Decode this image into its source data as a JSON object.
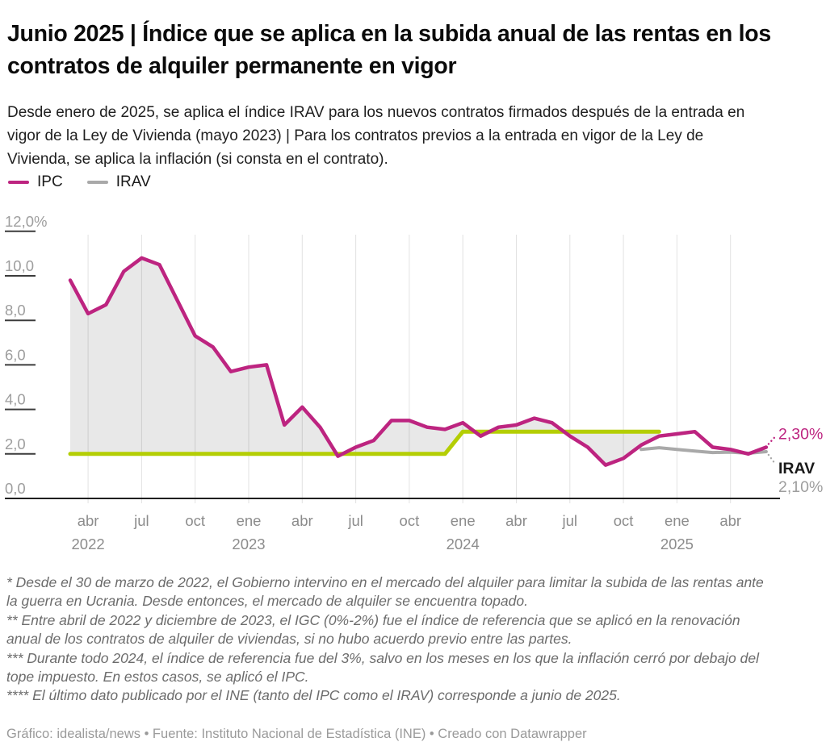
{
  "header": {
    "title": "Junio 2025 | Índice que se aplica en la subida anual de las rentas en los contratos de alquiler permanente en vigor",
    "description": "Desde enero de 2025, se aplica el índice IRAV para los nuevos contratos firmados después de la entrada en vigor de la Ley de Vivienda (mayo 2023) | Para los contratos previos a la entrada en vigor de la Ley de Vivienda, se aplica la inflación (si consta en el contrato)."
  },
  "legend": {
    "items": [
      {
        "label": "IPC",
        "color": "#bd2480"
      },
      {
        "label": "IRAV",
        "color": "#a9a9a9"
      }
    ]
  },
  "chart_data": {
    "type": "line",
    "x_unit": "month",
    "x_start": "2022-03",
    "x_end": "2025-06",
    "ylim": [
      0,
      12
    ],
    "grid": "vertical",
    "legend_position": "top-left",
    "style": {
      "grid_color": "#e2e2e2",
      "axis_color": "#1f1f1f",
      "tick_color": "#3c3c3c",
      "y_label_color": "#9e9e9e",
      "x_label_color": "#8c8c8c",
      "annotation_dark": "#1a1a1a"
    },
    "area": {
      "between": [
        "IPC",
        "Tope aplicado (IGC/3%)"
      ],
      "fill": "rgba(0,0,0,0.09)"
    },
    "series": [
      {
        "name": "IPC",
        "color": "#bd2480",
        "start": "2022-03",
        "values": [
          9.8,
          8.3,
          8.7,
          10.2,
          10.8,
          10.5,
          8.9,
          7.3,
          6.8,
          5.7,
          5.9,
          6.0,
          3.3,
          4.1,
          3.2,
          1.9,
          2.3,
          2.6,
          3.5,
          3.5,
          3.2,
          3.1,
          3.4,
          2.8,
          3.2,
          3.3,
          3.6,
          3.4,
          2.8,
          2.3,
          1.5,
          1.8,
          2.4,
          2.8,
          2.9,
          3.0,
          2.3,
          2.2,
          2.0,
          2.3
        ]
      },
      {
        "name": "IRAV",
        "color": "#a9a9a9",
        "start": "2024-11",
        "values": [
          2.2,
          2.28,
          2.2,
          2.13,
          2.06,
          2.08,
          2.03,
          2.1
        ]
      },
      {
        "name": "Tope aplicado (IGC/3%)",
        "color": "#b4ce04",
        "start": "2022-03",
        "values": [
          2,
          2,
          2,
          2,
          2,
          2,
          2,
          2,
          2,
          2,
          2,
          2,
          2,
          2,
          2,
          2,
          2,
          2,
          2,
          2,
          2,
          2,
          3,
          3,
          3,
          3,
          3,
          3,
          3,
          3,
          3,
          3,
          3,
          3
        ]
      }
    ],
    "y_ticks": [
      {
        "value": 0,
        "label": "0,0"
      },
      {
        "value": 2,
        "label": "2,0"
      },
      {
        "value": 4,
        "label": "4,0"
      },
      {
        "value": 6,
        "label": "6,0"
      },
      {
        "value": 8,
        "label": "8,0"
      },
      {
        "value": 10,
        "label": "10,0"
      },
      {
        "value": 12,
        "label": "12,0%"
      }
    ],
    "x_ticks": [
      {
        "month": "2022-04",
        "label": "abr",
        "year": "2022"
      },
      {
        "month": "2022-07",
        "label": "jul"
      },
      {
        "month": "2022-10",
        "label": "oct"
      },
      {
        "month": "2023-01",
        "label": "ene",
        "year": "2023"
      },
      {
        "month": "2023-04",
        "label": "abr"
      },
      {
        "month": "2023-07",
        "label": "jul"
      },
      {
        "month": "2023-10",
        "label": "oct"
      },
      {
        "month": "2024-01",
        "label": "ene",
        "year": "2024"
      },
      {
        "month": "2024-04",
        "label": "abr"
      },
      {
        "month": "2024-07",
        "label": "jul"
      },
      {
        "month": "2024-10",
        "label": "oct"
      },
      {
        "month": "2025-01",
        "label": "ene",
        "year": "2025"
      },
      {
        "month": "2025-04",
        "label": "abr"
      }
    ]
  },
  "annotations": {
    "ipc_value": "2,30%",
    "irav_label": "IRAV",
    "irav_value": "2,10%"
  },
  "notes": [
    "* Desde el 30 de marzo de 2022, el Gobierno intervino en el mercado del alquiler para limitar la subida de las rentas ante la guerra en Ucrania. Desde entonces, el mercado de alquiler se encuentra topado.",
    "** Entre abril de 2022 y diciembre de 2023, el IGC (0%-2%) fue el índice de referencia que se aplicó en la renovación anual de los contratos de alquiler de viviendas, si no hubo acuerdo previo entre las partes.",
    "*** Durante todo 2024, el índice de referencia fue del 3%, salvo en los meses en los que la inflación cerró por debajo del tope impuesto. En estos casos, se aplicó el IPC.",
    "**** El último dato publicado por el INE (tanto del IPC como el IRAV) corresponde a junio de 2025."
  ],
  "source": "Gráfico: idealista/news • Fuente: Instituto Nacional de Estadística (INE) • Creado con Datawrapper"
}
